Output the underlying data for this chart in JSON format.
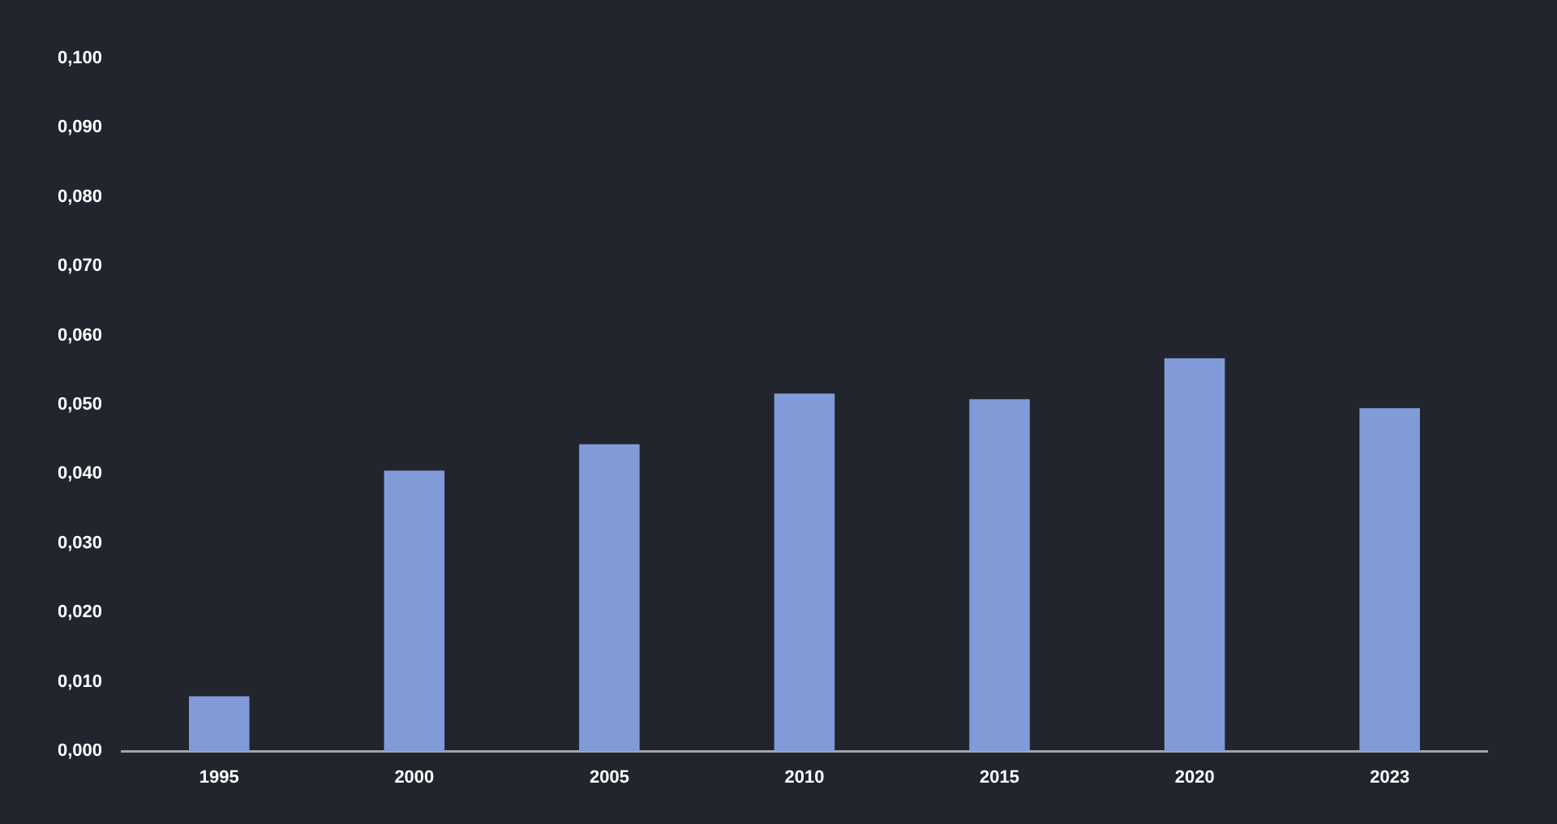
{
  "chart_data": {
    "type": "bar",
    "categories": [
      "1995",
      "2000",
      "2005",
      "2010",
      "2015",
      "2020",
      "2023"
    ],
    "values": [
      0.0079,
      0.0405,
      0.0443,
      0.0516,
      0.0508,
      0.0567,
      0.0495
    ],
    "color": "#809bd7",
    "ylim": [
      0,
      0.1
    ],
    "yticks": [
      {
        "value": 0,
        "label": "0,000"
      },
      {
        "value": 0.01,
        "label": "0,010"
      },
      {
        "value": 0.02,
        "label": "0,020"
      },
      {
        "value": 0.03,
        "label": "0,030"
      },
      {
        "value": 0.04,
        "label": "0,040"
      },
      {
        "value": 0.05,
        "label": "0,050"
      },
      {
        "value": 0.06,
        "label": "0,060"
      },
      {
        "value": 0.07,
        "label": "0,070"
      },
      {
        "value": 0.08,
        "label": "0,080"
      },
      {
        "value": 0.09,
        "label": "0,090"
      },
      {
        "value": 0.1,
        "label": "0,100"
      }
    ]
  }
}
